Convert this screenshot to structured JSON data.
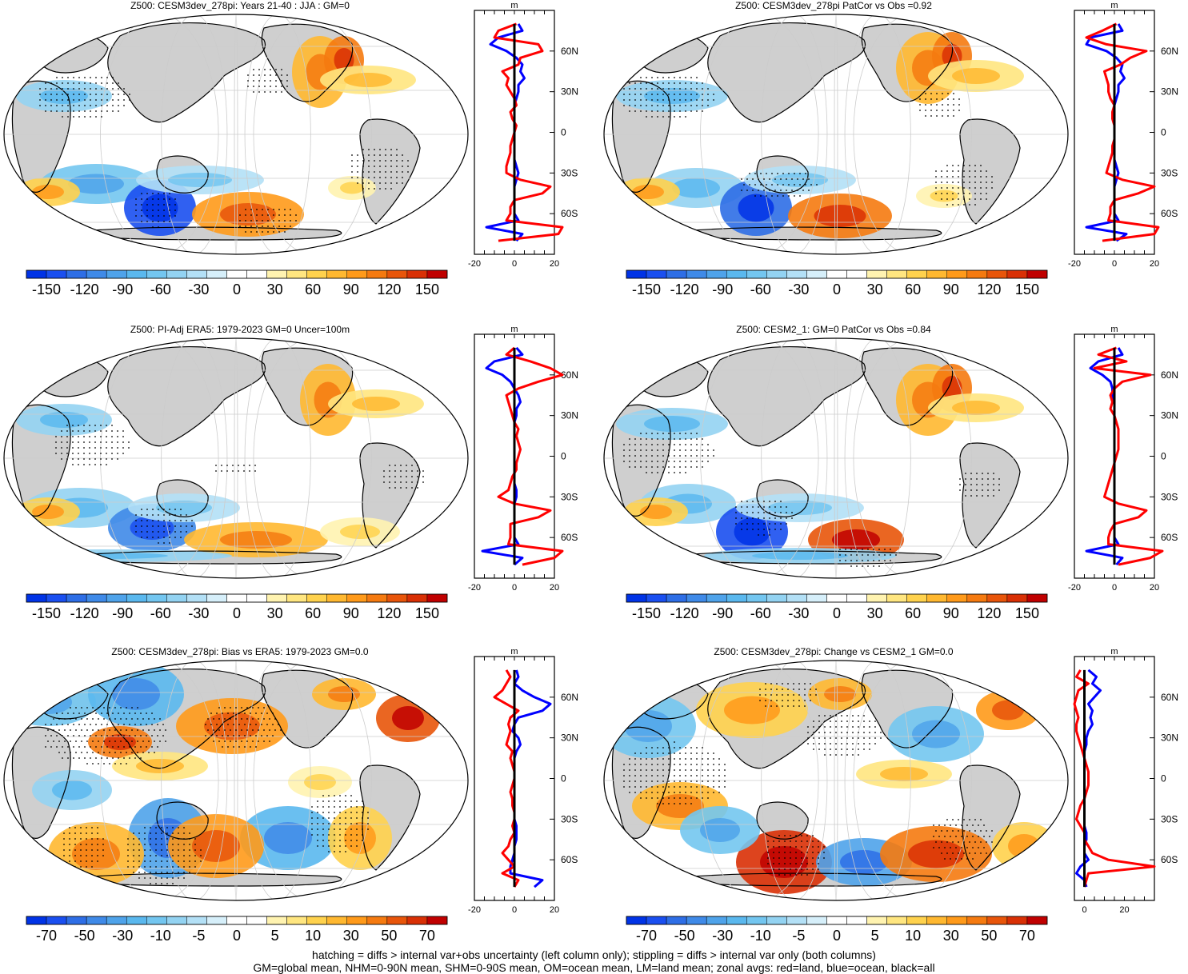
{
  "chart_data": [
    {
      "type": "map",
      "title": "Z500: CESM3dev_278pi: Years 21-40 : JJA : GM=0",
      "colorbar": {
        "labels": [
          "-150",
          "-120",
          "-90",
          "-60",
          "-30",
          "0",
          "30",
          "60",
          "90",
          "120",
          "150"
        ],
        "levels": [
          -150,
          -135,
          -120,
          -105,
          -90,
          -75,
          -60,
          -45,
          -30,
          -15,
          0,
          15,
          30,
          45,
          60,
          75,
          90,
          105,
          120,
          135,
          150
        ]
      },
      "zonal": {
        "unit": "m",
        "xlim": [
          -20,
          20
        ],
        "xticks": [
          "-20",
          "0",
          "20"
        ],
        "lat_labels": [
          "60N",
          "30N",
          "0",
          "30S",
          "60S"
        ],
        "lats": [
          80,
          75,
          70,
          65,
          60,
          55,
          50,
          45,
          40,
          35,
          30,
          25,
          20,
          15,
          10,
          5,
          0,
          -5,
          -10,
          -15,
          -20,
          -25,
          -30,
          -35,
          -40,
          -45,
          -50,
          -55,
          -60,
          -65,
          -70,
          -75,
          -80
        ],
        "land": [
          1,
          -8,
          -10,
          12,
          14,
          3,
          2,
          -6,
          -3,
          -4,
          -2,
          0,
          1,
          -2,
          -1,
          1,
          0,
          -1,
          -2,
          -2,
          -3,
          -4,
          -4,
          3,
          18,
          14,
          0,
          -2,
          -2,
          -4,
          24,
          22,
          -8
        ],
        "ocean": [
          2,
          4,
          -8,
          -12,
          -4,
          1,
          4,
          3,
          5,
          2,
          2,
          1,
          0,
          0,
          0,
          0,
          0,
          0,
          0,
          0,
          0,
          1,
          2,
          1,
          0,
          0,
          0,
          0,
          0,
          2,
          -14,
          4,
          1
        ],
        "all": [
          0,
          0,
          0,
          0,
          0,
          0,
          0,
          0,
          0,
          0,
          0,
          0,
          0,
          0,
          0,
          0,
          0,
          0,
          0,
          0,
          0,
          0,
          0,
          0,
          0,
          0,
          0,
          0,
          0,
          0,
          0,
          0,
          0
        ]
      }
    },
    {
      "type": "map",
      "title": "Z500: CESM3dev_278pi PatCor vs Obs =0.92",
      "colorbar": {
        "labels": [
          "-150",
          "-120",
          "-90",
          "-60",
          "-30",
          "0",
          "30",
          "60",
          "90",
          "120",
          "150"
        ],
        "levels": [
          -150,
          -135,
          -120,
          -105,
          -90,
          -75,
          -60,
          -45,
          -30,
          -15,
          0,
          15,
          30,
          45,
          60,
          75,
          90,
          105,
          120,
          135,
          150
        ]
      },
      "zonal": {
        "unit": "m",
        "xlim": [
          -20,
          20
        ],
        "xticks": [
          "-20",
          "0",
          "20"
        ],
        "lat_labels": [
          "60N",
          "30N",
          "0",
          "30S",
          "60S"
        ],
        "lats": [
          80,
          75,
          70,
          65,
          60,
          55,
          50,
          45,
          40,
          35,
          30,
          25,
          20,
          15,
          10,
          5,
          0,
          -5,
          -10,
          -15,
          -20,
          -25,
          -30,
          -35,
          -40,
          -45,
          -50,
          -55,
          -60,
          -65,
          -70,
          -75,
          -80
        ],
        "land": [
          1,
          -6,
          -14,
          -4,
          16,
          8,
          3,
          -5,
          -4,
          -3,
          -3,
          -2,
          0,
          -1,
          -1,
          0,
          0,
          0,
          -1,
          -1,
          -2,
          -3,
          -4,
          4,
          20,
          12,
          0,
          -2,
          -2,
          -3,
          22,
          20,
          -6
        ],
        "ocean": [
          2,
          4,
          -12,
          -14,
          -4,
          1,
          4,
          3,
          5,
          2,
          2,
          1,
          0,
          0,
          0,
          0,
          0,
          0,
          0,
          0,
          0,
          1,
          2,
          1,
          0,
          0,
          0,
          0,
          0,
          2,
          -14,
          6,
          1
        ],
        "all": [
          0,
          0,
          0,
          0,
          0,
          0,
          0,
          0,
          0,
          0,
          0,
          0,
          0,
          0,
          0,
          0,
          0,
          0,
          0,
          0,
          0,
          0,
          0,
          0,
          0,
          0,
          0,
          0,
          0,
          0,
          0,
          0,
          0
        ]
      }
    },
    {
      "type": "map",
      "title": "Z500: PI-Adj ERA5: 1979-2023 GM=0 Uncer=100m",
      "colorbar": {
        "labels": [
          "-150",
          "-120",
          "-90",
          "-60",
          "-30",
          "0",
          "30",
          "60",
          "90",
          "120",
          "150"
        ],
        "levels": [
          -150,
          -135,
          -120,
          -105,
          -90,
          -75,
          -60,
          -45,
          -30,
          -15,
          0,
          15,
          30,
          45,
          60,
          75,
          90,
          105,
          120,
          135,
          150
        ]
      },
      "zonal": {
        "unit": "m",
        "xlim": [
          -20,
          20
        ],
        "xticks": [
          "-20",
          "0",
          "20"
        ],
        "lat_labels": [
          "60N",
          "30N",
          "0",
          "30S",
          "60S"
        ],
        "lats": [
          80,
          75,
          70,
          65,
          60,
          55,
          50,
          45,
          40,
          35,
          30,
          25,
          20,
          15,
          10,
          5,
          0,
          -5,
          -10,
          -15,
          -20,
          -25,
          -30,
          -35,
          -40,
          -45,
          -50,
          -55,
          -60,
          -65,
          -70,
          -75,
          -80
        ],
        "land": [
          0,
          -4,
          8,
          18,
          24,
          12,
          2,
          -4,
          -3,
          -2,
          -1,
          0,
          2,
          1,
          2,
          3,
          2,
          1,
          1,
          -1,
          -2,
          -3,
          -8,
          0,
          18,
          12,
          -2,
          -2,
          -2,
          -3,
          24,
          20,
          4
        ],
        "ocean": [
          1,
          4,
          -10,
          -14,
          -6,
          -2,
          0,
          2,
          3,
          1,
          1,
          0,
          0,
          0,
          0,
          0,
          0,
          0,
          0,
          0,
          0,
          1,
          1,
          0,
          0,
          0,
          0,
          0,
          0,
          2,
          -16,
          4,
          0
        ],
        "all": [
          0,
          0,
          0,
          0,
          0,
          0,
          0,
          0,
          0,
          0,
          0,
          0,
          0,
          0,
          0,
          0,
          0,
          0,
          0,
          0,
          0,
          0,
          0,
          0,
          0,
          0,
          0,
          0,
          0,
          0,
          0,
          0,
          0
        ]
      }
    },
    {
      "type": "map",
      "title": "Z500: CESM2_1: GM=0 PatCor vs Obs =0.84",
      "colorbar": {
        "labels": [
          "-150",
          "-120",
          "-90",
          "-60",
          "-30",
          "0",
          "30",
          "60",
          "90",
          "120",
          "150"
        ],
        "levels": [
          -150,
          -135,
          -120,
          -105,
          -90,
          -75,
          -60,
          -45,
          -30,
          -15,
          0,
          15,
          30,
          45,
          60,
          75,
          90,
          105,
          120,
          135,
          150
        ]
      },
      "zonal": {
        "unit": "m",
        "xlim": [
          -20,
          20
        ],
        "xticks": [
          "-20",
          "0",
          "20"
        ],
        "lat_labels": [
          "60N",
          "30N",
          "0",
          "30S",
          "60S"
        ],
        "lats": [
          80,
          75,
          70,
          65,
          60,
          55,
          50,
          45,
          40,
          35,
          30,
          25,
          20,
          15,
          10,
          5,
          0,
          -5,
          -10,
          -15,
          -20,
          -25,
          -30,
          -35,
          -40,
          -45,
          -50,
          -55,
          -60,
          -65,
          -70,
          -75,
          -80
        ],
        "land": [
          1,
          -8,
          6,
          -10,
          18,
          4,
          0,
          -2,
          -1,
          -2,
          0,
          1,
          2,
          2,
          2,
          2,
          1,
          0,
          -1,
          -2,
          -3,
          -4,
          -5,
          2,
          16,
          12,
          0,
          -2,
          -3,
          -3,
          24,
          18,
          2
        ],
        "ocean": [
          2,
          4,
          -8,
          -12,
          -6,
          -2,
          -1,
          -1,
          0,
          0,
          0,
          0,
          0,
          0,
          0,
          0,
          0,
          0,
          0,
          0,
          0,
          0,
          0,
          0,
          0,
          0,
          0,
          0,
          0,
          2,
          -14,
          4,
          1
        ],
        "all": [
          0,
          0,
          0,
          0,
          0,
          0,
          0,
          0,
          0,
          0,
          0,
          0,
          0,
          0,
          0,
          0,
          0,
          0,
          0,
          0,
          0,
          0,
          0,
          0,
          0,
          0,
          0,
          0,
          0,
          0,
          0,
          0,
          0
        ]
      }
    },
    {
      "type": "map",
      "title": "Z500: CESM3dev_278pi: Bias vs ERA5: 1979-2023 GM=0.0",
      "colorbar": {
        "labels": [
          "-70",
          "-50",
          "-30",
          "-10",
          "-5",
          "0",
          "5",
          "10",
          "30",
          "50",
          "70"
        ],
        "levels": [
          -70,
          -60,
          -50,
          -40,
          -30,
          -20,
          -10,
          -7.5,
          -5,
          -2.5,
          0,
          2.5,
          5,
          7.5,
          10,
          20,
          30,
          40,
          50,
          60,
          70
        ]
      },
      "zonal": {
        "unit": "m",
        "xlim": [
          -20,
          20
        ],
        "xticks": [
          "-20",
          "0",
          "20"
        ],
        "lat_labels": [
          "60N",
          "30N",
          "0",
          "30S",
          "60S"
        ],
        "lats": [
          80,
          75,
          70,
          65,
          60,
          55,
          50,
          45,
          40,
          35,
          30,
          25,
          20,
          15,
          10,
          5,
          0,
          -5,
          -10,
          -15,
          -20,
          -25,
          -30,
          -35,
          -40,
          -45,
          -50,
          -55,
          -60,
          -65,
          -70,
          -75,
          -80
        ],
        "land": [
          -4,
          -2,
          -4,
          -6,
          -10,
          -4,
          2,
          -2,
          -3,
          -2,
          -3,
          -4,
          -1,
          -2,
          -1,
          0,
          0,
          -1,
          -2,
          -1,
          -1,
          0,
          0,
          -1,
          0,
          -2,
          -3,
          -6,
          -3,
          0,
          -6,
          2,
          0
        ],
        "ocean": [
          1,
          2,
          0,
          4,
          10,
          18,
          14,
          2,
          0,
          -1,
          2,
          3,
          1,
          0,
          0,
          0,
          0,
          0,
          0,
          0,
          0,
          0,
          0,
          1,
          1,
          1,
          0,
          0,
          -1,
          -2,
          -2,
          14,
          10
        ],
        "all": [
          0,
          0,
          0,
          0,
          0,
          0,
          0,
          0,
          0,
          0,
          0,
          0,
          0,
          0,
          0,
          0,
          0,
          0,
          0,
          0,
          0,
          0,
          0,
          0,
          0,
          0,
          0,
          0,
          0,
          0,
          0,
          0,
          0
        ]
      }
    },
    {
      "type": "map",
      "title": "Z500: CESM3dev_278pi: Change vs CESM2_1 GM=0.0",
      "colorbar": {
        "labels": [
          "-70",
          "-50",
          "-30",
          "-10",
          "-5",
          "0",
          "5",
          "10",
          "30",
          "50",
          "70"
        ],
        "levels": [
          -70,
          -60,
          -50,
          -40,
          -30,
          -20,
          -10,
          -7.5,
          -5,
          -2.5,
          0,
          2.5,
          5,
          7.5,
          10,
          20,
          30,
          40,
          50,
          60,
          70
        ]
      },
      "zonal": {
        "unit": "m",
        "xlim": [
          -5,
          35
        ],
        "xticks": [
          "0",
          "20"
        ],
        "lat_labels": [
          "60N",
          "30N",
          "0",
          "30S",
          "60S"
        ],
        "lats": [
          80,
          75,
          70,
          65,
          60,
          55,
          50,
          45,
          40,
          35,
          30,
          25,
          20,
          15,
          10,
          5,
          0,
          -5,
          -10,
          -15,
          -20,
          -25,
          -30,
          -35,
          -40,
          -45,
          -50,
          -55,
          -60,
          -65,
          -70,
          -75,
          -80
        ],
        "land": [
          -2,
          -4,
          2,
          -3,
          -4,
          -5,
          -4,
          -3,
          -4,
          -4,
          -3,
          -2,
          -1,
          0,
          1,
          2,
          2,
          2,
          1,
          0,
          -2,
          -3,
          -4,
          -2,
          0,
          0,
          2,
          4,
          12,
          35,
          2,
          1,
          0
        ],
        "ocean": [
          2,
          6,
          4,
          8,
          5,
          2,
          4,
          3,
          4,
          2,
          1,
          1,
          0,
          0,
          0,
          0,
          0,
          0,
          0,
          0,
          0,
          0,
          0,
          0,
          1,
          1,
          0,
          0,
          2,
          -2,
          -4,
          0,
          1
        ],
        "all": [
          0,
          0,
          0,
          0,
          0,
          0,
          0,
          0,
          0,
          0,
          0,
          0,
          0,
          0,
          0,
          0,
          0,
          0,
          0,
          0,
          0,
          0,
          0,
          0,
          0,
          0,
          0,
          0,
          0,
          0,
          0,
          0,
          0
        ]
      }
    }
  ],
  "footer": {
    "line1": "hatching = diffs > internal var+obs uncertainty (left column only); stippling = diffs > internal var only (both columns)",
    "line2": "GM=global mean, NHM=0-90N mean, SHM=0-90S mean, OM=ocean mean, LM=land mean; zonal avgs: red=land, blue=ocean, black=all"
  },
  "colors": {
    "land": "#ff0000",
    "ocean": "#0000ff",
    "all": "#000000",
    "continent_fill": "#cfcfcf",
    "palette": [
      "#0033e6",
      "#1a4ff0",
      "#2e6ee6",
      "#3f8ae8",
      "#4fa3ea",
      "#5ab8ee",
      "#73c6f0",
      "#93d3f2",
      "#b3e0f6",
      "#d6effa",
      "#ffffff",
      "#ffffff",
      "#fff3b0",
      "#ffe680",
      "#ffd24d",
      "#ffb830",
      "#ff9a1a",
      "#f57a10",
      "#e8550a",
      "#d93005",
      "#c00000"
    ]
  }
}
